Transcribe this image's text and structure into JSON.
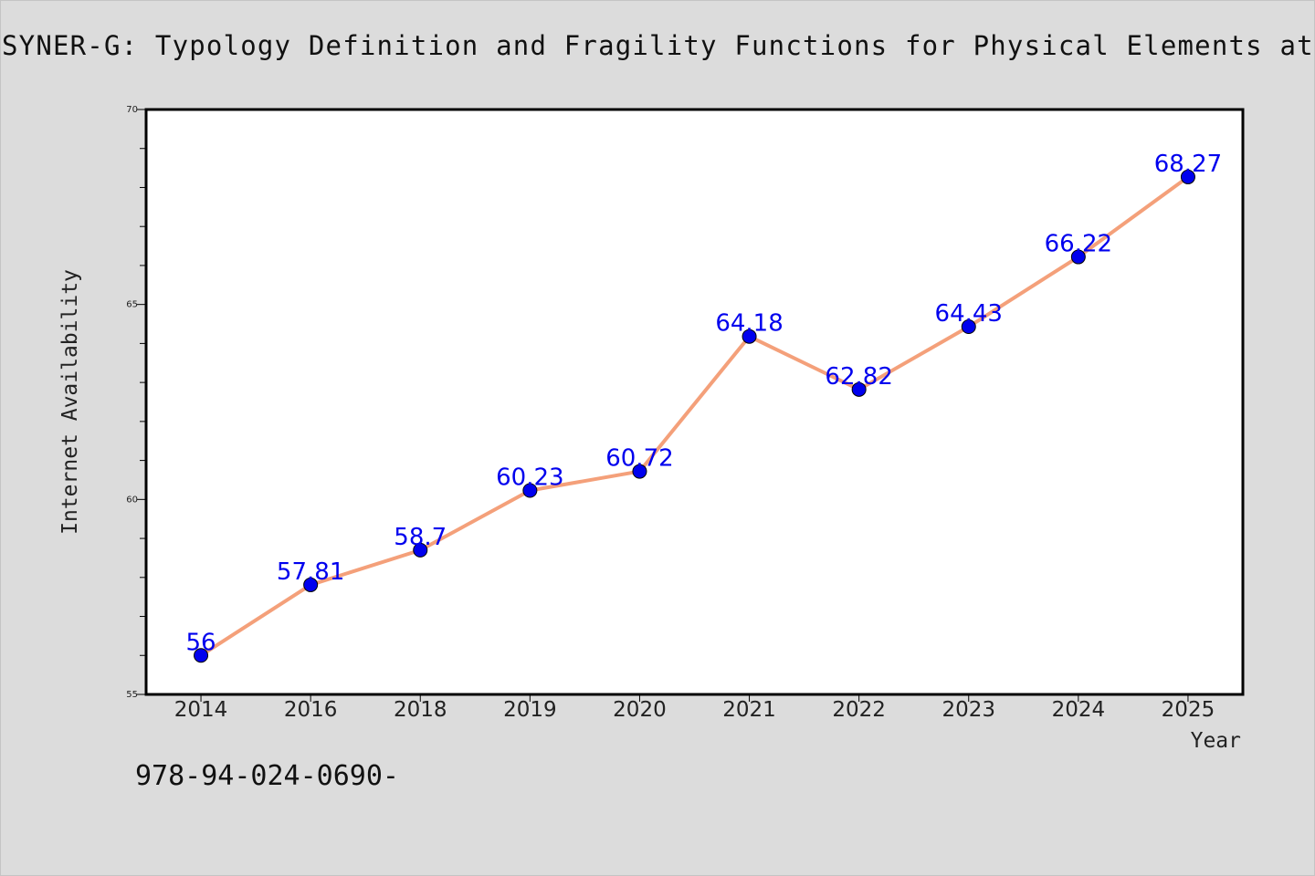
{
  "title": "SYNER-G: Typology Definition and Fragility Functions for Physical Elements at Se",
  "footer_text": "978-94-024-0690-",
  "chart_data": {
    "type": "line",
    "title": "SYNER-G: Typology Definition and Fragility Functions for Physical Elements at Se",
    "xlabel": "Year",
    "ylabel": "Internet Availability",
    "categories": [
      "2014",
      "2016",
      "2018",
      "2019",
      "2020",
      "2021",
      "2022",
      "2023",
      "2024",
      "2025"
    ],
    "series": [
      {
        "values": [
          56,
          57.81,
          58.7,
          60.23,
          60.72,
          64.18,
          62.82,
          64.43,
          66.22,
          68.27
        ],
        "labels": [
          "56",
          "57.81",
          "58.7",
          "60.23",
          "60.72",
          "64.18",
          "62.82",
          "64.43",
          "66.22",
          "68.27"
        ],
        "line_color": "#f4a07a",
        "marker_color": "#0000ee"
      }
    ],
    "ylim": [
      55,
      70
    ],
    "yticks": [
      55,
      60,
      65,
      70
    ],
    "ytick_labels": [
      "55",
      "60",
      "65",
      "70"
    ],
    "grid": false,
    "legend": "none"
  }
}
